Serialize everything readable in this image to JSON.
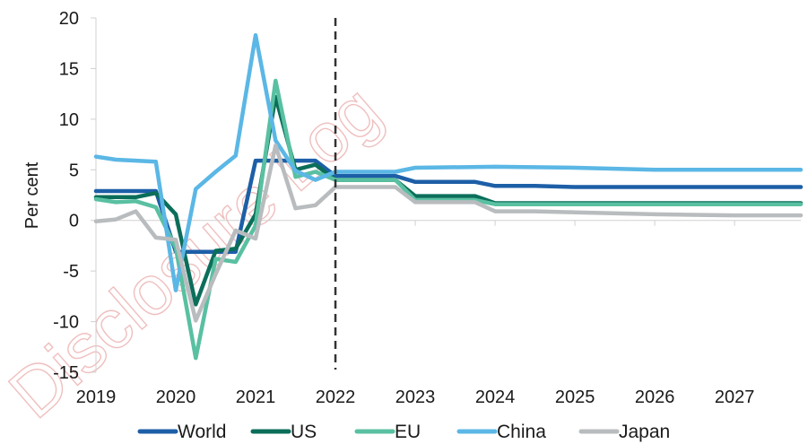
{
  "watermark": "Disclosure Log",
  "chart_data": {
    "type": "line",
    "xlabel": "",
    "ylabel": "Per cent",
    "ylim": [
      -15,
      20
    ],
    "yticks": [
      -15,
      -10,
      -5,
      0,
      5,
      10,
      15,
      20
    ],
    "xlim": [
      2019,
      2027.83
    ],
    "xticks": [
      2019,
      2020,
      2021,
      2022,
      2023,
      2024,
      2025,
      2026,
      2027
    ],
    "vline": 2022,
    "grid": false,
    "legend_position": "bottom",
    "series": [
      {
        "name": "World",
        "color": "#1d5fa7",
        "x": [
          2019,
          2019.75,
          2020,
          2020.25,
          2020.5,
          2020.75,
          2021,
          2021.25,
          2021.5,
          2021.75,
          2022,
          2022.25,
          2022.5,
          2022.75,
          2023,
          2023.5,
          2023.75,
          2024,
          2024.5,
          2025,
          2026,
          2027,
          2027.83
        ],
        "values": [
          2.9,
          2.9,
          -3.1,
          -3.1,
          -3.1,
          -3.1,
          5.9,
          5.9,
          5.9,
          5.9,
          4.4,
          4.4,
          4.4,
          4.4,
          3.8,
          3.8,
          3.8,
          3.4,
          3.4,
          3.3,
          3.3,
          3.3,
          3.3
        ]
      },
      {
        "name": "US",
        "color": "#0b6e5a",
        "x": [
          2019,
          2019.5,
          2019.75,
          2020,
          2020.25,
          2020.5,
          2020.75,
          2021,
          2021.25,
          2021.5,
          2021.75,
          2022,
          2022.25,
          2022.5,
          2022.75,
          2023,
          2023.5,
          2023.75,
          2024,
          2024.5,
          2025,
          2026,
          2027,
          2027.83
        ],
        "values": [
          2.3,
          2.3,
          2.7,
          0.6,
          -8.3,
          -3.0,
          -2.8,
          0.6,
          12.2,
          5.0,
          5.5,
          4.0,
          4.0,
          4.0,
          4.0,
          2.4,
          2.4,
          2.4,
          1.7,
          1.7,
          1.7,
          1.7,
          1.7,
          1.7
        ]
      },
      {
        "name": "EU",
        "color": "#59c0a1",
        "x": [
          2019,
          2019.25,
          2019.5,
          2019.75,
          2020,
          2020.25,
          2020.5,
          2020.75,
          2021,
          2021.25,
          2021.5,
          2021.75,
          2022,
          2022.25,
          2022.5,
          2022.75,
          2023,
          2023.5,
          2023.75,
          2024,
          2024.5,
          2025,
          2026,
          2027,
          2027.83
        ],
        "values": [
          2.1,
          1.8,
          1.9,
          1.3,
          -2.7,
          -13.6,
          -3.8,
          -4.1,
          -0.5,
          13.8,
          4.3,
          4.8,
          4.0,
          4.0,
          4.0,
          4.0,
          2.0,
          2.0,
          2.0,
          1.6,
          1.6,
          1.6,
          1.6,
          1.6,
          1.6
        ]
      },
      {
        "name": "China",
        "color": "#5bb7e5",
        "x": [
          2019,
          2019.25,
          2019.5,
          2019.75,
          2020,
          2020.25,
          2020.5,
          2020.75,
          2021,
          2021.25,
          2021.5,
          2021.75,
          2022,
          2022.25,
          2022.5,
          2022.75,
          2023,
          2024,
          2025,
          2026,
          2027,
          2027.83
        ],
        "values": [
          6.3,
          6.0,
          5.9,
          5.8,
          -6.9,
          3.1,
          4.8,
          6.4,
          18.3,
          7.9,
          4.9,
          4.0,
          4.8,
          4.8,
          4.8,
          4.8,
          5.2,
          5.3,
          5.2,
          5.0,
          5.0,
          5.0
        ]
      },
      {
        "name": "Japan",
        "color": "#b9bcbe",
        "x": [
          2019,
          2019.25,
          2019.5,
          2019.75,
          2020,
          2020.25,
          2020.5,
          2020.75,
          2021,
          2021.25,
          2021.5,
          2021.75,
          2022,
          2022.25,
          2022.5,
          2022.75,
          2023,
          2023.5,
          2023.75,
          2024,
          2024.5,
          2025,
          2026,
          2027,
          2027.83
        ],
        "values": [
          -0.1,
          0.1,
          0.9,
          -1.7,
          -1.9,
          -9.9,
          -5.3,
          -1.0,
          -1.8,
          7.4,
          1.2,
          1.5,
          3.3,
          3.3,
          3.3,
          3.3,
          1.8,
          1.8,
          1.8,
          0.9,
          0.9,
          0.8,
          0.6,
          0.5,
          0.5
        ]
      }
    ]
  }
}
